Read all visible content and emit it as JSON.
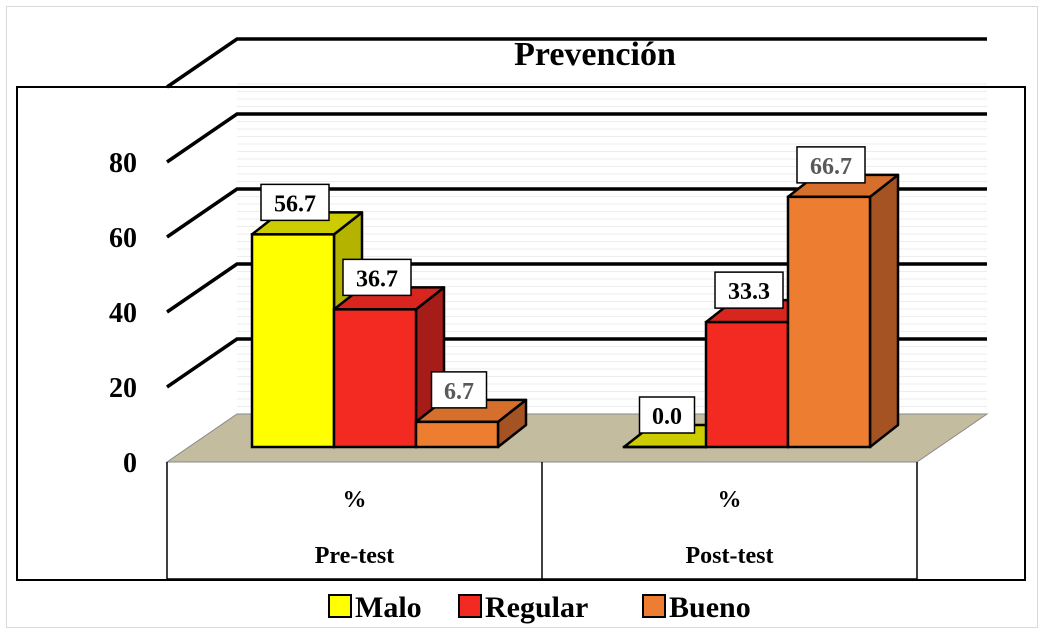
{
  "chart_data": {
    "type": "bar",
    "title": "Prevención",
    "categories": [
      "Pre-test",
      "Post-test"
    ],
    "category_sublabels": [
      "%",
      "%"
    ],
    "series": [
      {
        "name": "Malo",
        "values": [
          56.7,
          0.0
        ],
        "labels": [
          "56.7",
          "0.0"
        ],
        "color": "#ffff00",
        "side_color": "#b3b300",
        "top_color": "#cccc00"
      },
      {
        "name": "Regular",
        "values": [
          36.7,
          33.3
        ],
        "labels": [
          "36.7",
          "33.3"
        ],
        "color": "#f32a22",
        "side_color": "#a51c18",
        "top_color": "#d8261f"
      },
      {
        "name": "Bueno",
        "values": [
          6.7,
          66.7
        ],
        "labels": [
          "6.7",
          "66.7"
        ],
        "color": "#ed7d31",
        "side_color": "#a65323",
        "top_color": "#d66f2b"
      }
    ],
    "yticks": [
      "0",
      "20",
      "40",
      "60",
      "80"
    ],
    "ylim": [
      0,
      80
    ],
    "grid": true,
    "legend_position": "bottom",
    "floor_color": "#c4bc9f"
  }
}
